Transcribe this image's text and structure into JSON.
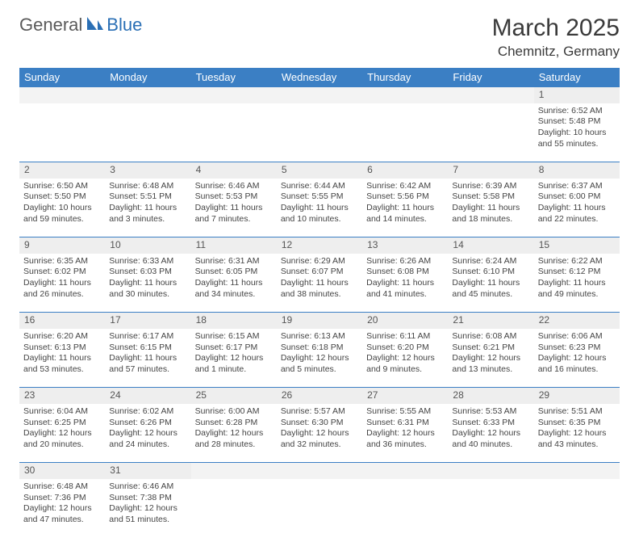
{
  "logo": {
    "part1": "General",
    "part2": "Blue"
  },
  "title": "March 2025",
  "location": "Chemnitz, Germany",
  "headers": [
    "Sunday",
    "Monday",
    "Tuesday",
    "Wednesday",
    "Thursday",
    "Friday",
    "Saturday"
  ],
  "colors": {
    "header_bg": "#3b7fc4",
    "header_fg": "#ffffff",
    "daynum_bg": "#eeeeee",
    "blank_bg": "#f3f3f3",
    "border": "#3b7fc4",
    "text": "#444444",
    "logo_gray": "#5a5a5a",
    "logo_blue": "#2a6fb5"
  },
  "weeks": [
    [
      null,
      null,
      null,
      null,
      null,
      null,
      {
        "n": "1",
        "sr": "Sunrise: 6:52 AM",
        "ss": "Sunset: 5:48 PM",
        "dl": "Daylight: 10 hours and 55 minutes."
      }
    ],
    [
      {
        "n": "2",
        "sr": "Sunrise: 6:50 AM",
        "ss": "Sunset: 5:50 PM",
        "dl": "Daylight: 10 hours and 59 minutes."
      },
      {
        "n": "3",
        "sr": "Sunrise: 6:48 AM",
        "ss": "Sunset: 5:51 PM",
        "dl": "Daylight: 11 hours and 3 minutes."
      },
      {
        "n": "4",
        "sr": "Sunrise: 6:46 AM",
        "ss": "Sunset: 5:53 PM",
        "dl": "Daylight: 11 hours and 7 minutes."
      },
      {
        "n": "5",
        "sr": "Sunrise: 6:44 AM",
        "ss": "Sunset: 5:55 PM",
        "dl": "Daylight: 11 hours and 10 minutes."
      },
      {
        "n": "6",
        "sr": "Sunrise: 6:42 AM",
        "ss": "Sunset: 5:56 PM",
        "dl": "Daylight: 11 hours and 14 minutes."
      },
      {
        "n": "7",
        "sr": "Sunrise: 6:39 AM",
        "ss": "Sunset: 5:58 PM",
        "dl": "Daylight: 11 hours and 18 minutes."
      },
      {
        "n": "8",
        "sr": "Sunrise: 6:37 AM",
        "ss": "Sunset: 6:00 PM",
        "dl": "Daylight: 11 hours and 22 minutes."
      }
    ],
    [
      {
        "n": "9",
        "sr": "Sunrise: 6:35 AM",
        "ss": "Sunset: 6:02 PM",
        "dl": "Daylight: 11 hours and 26 minutes."
      },
      {
        "n": "10",
        "sr": "Sunrise: 6:33 AM",
        "ss": "Sunset: 6:03 PM",
        "dl": "Daylight: 11 hours and 30 minutes."
      },
      {
        "n": "11",
        "sr": "Sunrise: 6:31 AM",
        "ss": "Sunset: 6:05 PM",
        "dl": "Daylight: 11 hours and 34 minutes."
      },
      {
        "n": "12",
        "sr": "Sunrise: 6:29 AM",
        "ss": "Sunset: 6:07 PM",
        "dl": "Daylight: 11 hours and 38 minutes."
      },
      {
        "n": "13",
        "sr": "Sunrise: 6:26 AM",
        "ss": "Sunset: 6:08 PM",
        "dl": "Daylight: 11 hours and 41 minutes."
      },
      {
        "n": "14",
        "sr": "Sunrise: 6:24 AM",
        "ss": "Sunset: 6:10 PM",
        "dl": "Daylight: 11 hours and 45 minutes."
      },
      {
        "n": "15",
        "sr": "Sunrise: 6:22 AM",
        "ss": "Sunset: 6:12 PM",
        "dl": "Daylight: 11 hours and 49 minutes."
      }
    ],
    [
      {
        "n": "16",
        "sr": "Sunrise: 6:20 AM",
        "ss": "Sunset: 6:13 PM",
        "dl": "Daylight: 11 hours and 53 minutes."
      },
      {
        "n": "17",
        "sr": "Sunrise: 6:17 AM",
        "ss": "Sunset: 6:15 PM",
        "dl": "Daylight: 11 hours and 57 minutes."
      },
      {
        "n": "18",
        "sr": "Sunrise: 6:15 AM",
        "ss": "Sunset: 6:17 PM",
        "dl": "Daylight: 12 hours and 1 minute."
      },
      {
        "n": "19",
        "sr": "Sunrise: 6:13 AM",
        "ss": "Sunset: 6:18 PM",
        "dl": "Daylight: 12 hours and 5 minutes."
      },
      {
        "n": "20",
        "sr": "Sunrise: 6:11 AM",
        "ss": "Sunset: 6:20 PM",
        "dl": "Daylight: 12 hours and 9 minutes."
      },
      {
        "n": "21",
        "sr": "Sunrise: 6:08 AM",
        "ss": "Sunset: 6:21 PM",
        "dl": "Daylight: 12 hours and 13 minutes."
      },
      {
        "n": "22",
        "sr": "Sunrise: 6:06 AM",
        "ss": "Sunset: 6:23 PM",
        "dl": "Daylight: 12 hours and 16 minutes."
      }
    ],
    [
      {
        "n": "23",
        "sr": "Sunrise: 6:04 AM",
        "ss": "Sunset: 6:25 PM",
        "dl": "Daylight: 12 hours and 20 minutes."
      },
      {
        "n": "24",
        "sr": "Sunrise: 6:02 AM",
        "ss": "Sunset: 6:26 PM",
        "dl": "Daylight: 12 hours and 24 minutes."
      },
      {
        "n": "25",
        "sr": "Sunrise: 6:00 AM",
        "ss": "Sunset: 6:28 PM",
        "dl": "Daylight: 12 hours and 28 minutes."
      },
      {
        "n": "26",
        "sr": "Sunrise: 5:57 AM",
        "ss": "Sunset: 6:30 PM",
        "dl": "Daylight: 12 hours and 32 minutes."
      },
      {
        "n": "27",
        "sr": "Sunrise: 5:55 AM",
        "ss": "Sunset: 6:31 PM",
        "dl": "Daylight: 12 hours and 36 minutes."
      },
      {
        "n": "28",
        "sr": "Sunrise: 5:53 AM",
        "ss": "Sunset: 6:33 PM",
        "dl": "Daylight: 12 hours and 40 minutes."
      },
      {
        "n": "29",
        "sr": "Sunrise: 5:51 AM",
        "ss": "Sunset: 6:35 PM",
        "dl": "Daylight: 12 hours and 43 minutes."
      }
    ],
    [
      {
        "n": "30",
        "sr": "Sunrise: 6:48 AM",
        "ss": "Sunset: 7:36 PM",
        "dl": "Daylight: 12 hours and 47 minutes."
      },
      {
        "n": "31",
        "sr": "Sunrise: 6:46 AM",
        "ss": "Sunset: 7:38 PM",
        "dl": "Daylight: 12 hours and 51 minutes."
      },
      null,
      null,
      null,
      null,
      null
    ]
  ]
}
